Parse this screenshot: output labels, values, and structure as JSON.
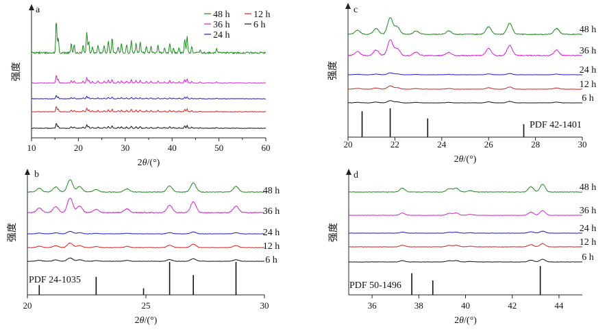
{
  "colors": {
    "48 h": "#1a8a1a",
    "36 h": "#d41ed4",
    "24 h": "#1a1acc",
    "12 h": "#d42222",
    "6 h": "#111111"
  },
  "chart_data": [
    {
      "id": "a",
      "type": "line",
      "panel_label": "a",
      "xlabel_prefix": "2",
      "xlabel_theta": "θ",
      "xlabel_suffix": "/(°)",
      "ylabel": "强度",
      "xlim": [
        10,
        60
      ],
      "xticks": [
        "10",
        "20",
        "30",
        "40",
        "50",
        "60"
      ],
      "legend": [
        "48 h",
        "36 h",
        "24 h",
        "12 h",
        "6 h"
      ],
      "series_order": [
        "48 h",
        "36 h",
        "24 h",
        "12 h",
        "6 h"
      ],
      "peaks": [
        [
          15.3,
          1.0
        ],
        [
          15.7,
          0.45
        ],
        [
          18.5,
          0.3
        ],
        [
          19.1,
          0.25
        ],
        [
          21.0,
          0.25
        ],
        [
          21.8,
          0.65
        ],
        [
          22.2,
          0.35
        ],
        [
          23.0,
          0.2
        ],
        [
          24.2,
          0.25
        ],
        [
          25.5,
          0.2
        ],
        [
          26.4,
          0.35
        ],
        [
          27.2,
          0.45
        ],
        [
          28.5,
          0.2
        ],
        [
          29.2,
          0.3
        ],
        [
          30.3,
          0.25
        ],
        [
          31.3,
          0.4
        ],
        [
          32.3,
          0.3
        ],
        [
          33.2,
          0.35
        ],
        [
          34.5,
          0.2
        ],
        [
          35.5,
          0.2
        ],
        [
          37.0,
          0.25
        ],
        [
          38.4,
          0.15
        ],
        [
          39.5,
          0.28
        ],
        [
          40.3,
          0.15
        ],
        [
          41.5,
          0.15
        ],
        [
          42.7,
          0.45
        ],
        [
          43.2,
          0.5
        ],
        [
          44.2,
          0.2
        ],
        [
          46.0,
          0.1
        ],
        [
          49.5,
          0.12
        ]
      ]
    },
    {
      "id": "b",
      "type": "line",
      "panel_label": "b",
      "xlabel_prefix": "2",
      "xlabel_theta": "θ",
      "xlabel_suffix": "/(°)",
      "ylabel": "强度",
      "xlim": [
        20,
        30
      ],
      "xticks": [
        "20",
        "25",
        "30"
      ],
      "series_order": [
        "48 h",
        "36 h",
        "24 h",
        "12 h",
        "6 h"
      ],
      "series_labels": [
        "48 h",
        "36 h",
        "24 h",
        "12 h",
        "6 h"
      ],
      "peaks": [
        [
          20.5,
          0.3
        ],
        [
          21.2,
          0.4
        ],
        [
          21.8,
          1.0
        ],
        [
          22.2,
          0.45
        ],
        [
          22.9,
          0.2
        ],
        [
          24.2,
          0.25
        ],
        [
          26.0,
          0.5
        ],
        [
          27.0,
          0.75
        ],
        [
          28.8,
          0.45
        ]
      ],
      "ref_label": "PDF 24-1035",
      "ref_lines": [
        [
          20.5,
          0.3
        ],
        [
          22.9,
          0.55
        ],
        [
          24.9,
          0.2
        ],
        [
          26.0,
          1.0
        ],
        [
          27.0,
          0.6
        ],
        [
          28.8,
          1.0
        ]
      ]
    },
    {
      "id": "c",
      "type": "line",
      "panel_label": "c",
      "xlabel_prefix": "2",
      "xlabel_theta": "θ",
      "xlabel_suffix": "/(°)",
      "ylabel": "强度",
      "xlim": [
        20,
        30
      ],
      "xticks": [
        "20",
        "22",
        "24",
        "26",
        "28",
        "30"
      ],
      "series_order": [
        "48 h",
        "36 h",
        "24 h",
        "12 h",
        "6 h"
      ],
      "series_labels": [
        "48 h",
        "36 h",
        "24 h",
        "12 h",
        "6 h"
      ],
      "peaks": [
        [
          20.4,
          0.25
        ],
        [
          21.2,
          0.35
        ],
        [
          21.8,
          1.0
        ],
        [
          22.1,
          0.45
        ],
        [
          22.9,
          0.2
        ],
        [
          24.3,
          0.2
        ],
        [
          26.0,
          0.45
        ],
        [
          26.9,
          0.65
        ],
        [
          28.9,
          0.35
        ]
      ],
      "ref_label": "PDF 42-1401",
      "ref_lines": [
        [
          20.6,
          0.9
        ],
        [
          21.8,
          1.0
        ],
        [
          23.4,
          0.65
        ],
        [
          27.5,
          0.45
        ]
      ]
    },
    {
      "id": "d",
      "type": "line",
      "panel_label": "d",
      "xlabel_prefix": "2",
      "xlabel_theta": "θ",
      "xlabel_suffix": "/(°)",
      "ylabel": "强度",
      "xlim": [
        35,
        45
      ],
      "xticks": [
        "36",
        "38",
        "40",
        "42",
        "44"
      ],
      "series_order": [
        "48 h",
        "36 h",
        "24 h",
        "12 h",
        "6 h"
      ],
      "series_labels": [
        "48 h",
        "36 h",
        "24 h",
        "12 h",
        "6 h"
      ],
      "peaks": [
        [
          37.3,
          0.4
        ],
        [
          39.3,
          0.35
        ],
        [
          39.6,
          0.4
        ],
        [
          40.2,
          0.15
        ],
        [
          42.8,
          0.55
        ],
        [
          43.3,
          0.8
        ]
      ],
      "ref_label": "PDF 50-1496",
      "ref_lines": [
        [
          37.7,
          0.75
        ],
        [
          38.6,
          0.5
        ],
        [
          43.2,
          1.0
        ]
      ]
    }
  ]
}
